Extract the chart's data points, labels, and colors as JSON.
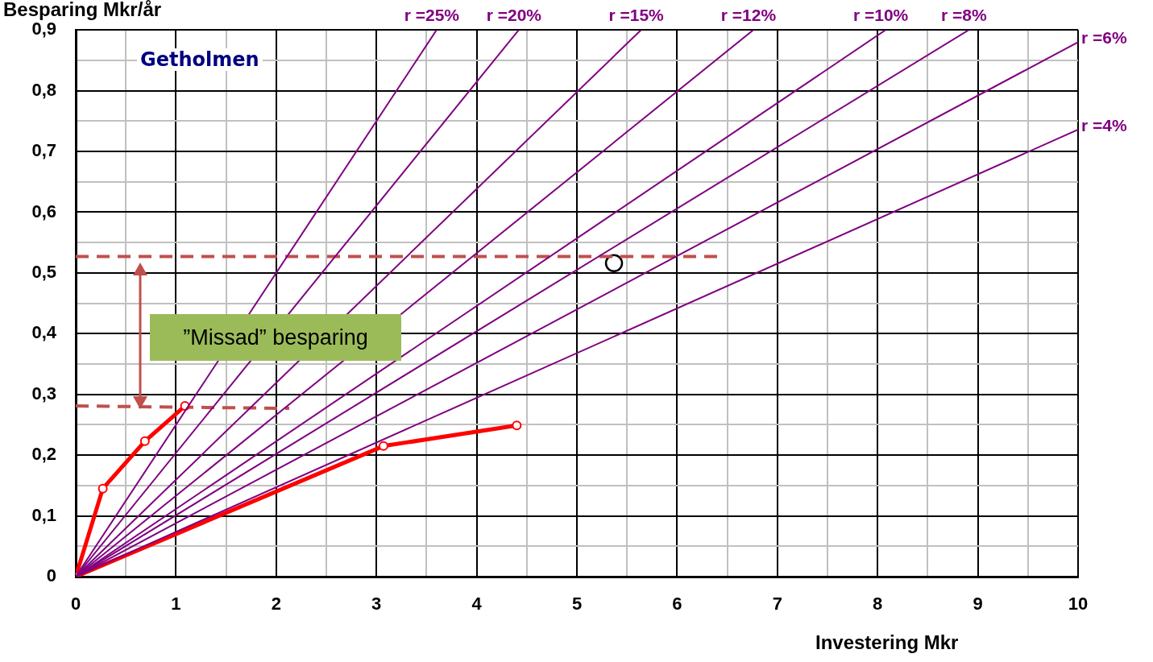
{
  "chart_data": {
    "type": "line",
    "ylabel": "Besparing Mkr/år",
    "xlabel": "Investering Mkr",
    "xlim": [
      0,
      10
    ],
    "ylim": [
      0,
      0.9
    ],
    "xticks": [
      0,
      {
        "value": 0.5,
        "label": null
      },
      1,
      {
        "value": 1.5,
        "label": null
      },
      2,
      {
        "value": 2.5,
        "label": null
      },
      3,
      {
        "value": 3.5,
        "label": null
      },
      4,
      {
        "value": 4.5,
        "label": null
      },
      5,
      {
        "value": 5.5,
        "label": null
      },
      6,
      {
        "value": 6.5,
        "label": null
      },
      7,
      {
        "value": 7.5,
        "label": null
      },
      8,
      {
        "value": 8.5,
        "label": null
      },
      9,
      {
        "value": 9.5,
        "label": null
      },
      10
    ],
    "yticks": [
      0,
      {
        "value": 0.05,
        "label": null
      },
      {
        "value": 0.1,
        "label": "0,1"
      },
      {
        "value": 0.15,
        "label": null
      },
      {
        "value": 0.2,
        "label": "0,2"
      },
      {
        "value": 0.25,
        "label": null
      },
      {
        "value": 0.3,
        "label": "0,3"
      },
      {
        "value": 0.35,
        "label": null
      },
      {
        "value": 0.4,
        "label": "0,4"
      },
      {
        "value": 0.45,
        "label": null
      },
      {
        "value": 0.5,
        "label": "0,5"
      },
      {
        "value": 0.55,
        "label": null
      },
      {
        "value": 0.6,
        "label": "0,6"
      },
      {
        "value": 0.65,
        "label": null
      },
      {
        "value": 0.7,
        "label": "0,7"
      },
      {
        "value": 0.75,
        "label": null
      },
      {
        "value": 0.8,
        "label": "0,8"
      },
      {
        "value": 0.85,
        "label": null
      },
      {
        "value": 0.9,
        "label": "0,9"
      }
    ],
    "grid": true,
    "legend": false,
    "marker": "none",
    "line_style": "solid",
    "annotations": [
      "Getholmen",
      "”Missad” besparing"
    ],
    "series": [
      {
        "name": "r =25%",
        "color": "#800080",
        "x": [
          0,
          3.6
        ],
        "values": [
          0,
          0.9
        ]
      },
      {
        "name": "r =20%",
        "color": "#800080",
        "x": [
          0,
          4.42
        ],
        "values": [
          0,
          0.9
        ]
      },
      {
        "name": "r =15%",
        "color": "#800080",
        "x": [
          0,
          5.64
        ],
        "values": [
          0,
          0.9
        ]
      },
      {
        "name": "r =12%",
        "color": "#800080",
        "x": [
          0,
          6.76
        ],
        "values": [
          0,
          0.9
        ]
      },
      {
        "name": "r =10%",
        "color": "#800080",
        "x": [
          0,
          8.08
        ],
        "values": [
          0,
          0.9
        ]
      },
      {
        "name": "r =8%",
        "color": "#800080",
        "x": [
          0,
          8.91
        ],
        "values": [
          0,
          0.9
        ]
      },
      {
        "name": "r =6%",
        "color": "#800080",
        "x": [
          0,
          10
        ],
        "values": [
          0,
          0.88
        ]
      },
      {
        "name": "r =4%",
        "color": "#800080",
        "x": [
          0,
          10
        ],
        "values": [
          0,
          0.736
        ]
      },
      {
        "color": "#ff0000",
        "marker": "circle",
        "x": [
          0,
          0.27,
          0.69,
          1.09
        ],
        "values": [
          0,
          0.145,
          0.223,
          0.281
        ]
      },
      {
        "color": "#ff0000",
        "marker": "circle",
        "x": [
          0,
          3.07,
          4.4
        ],
        "values": [
          0,
          0.215,
          0.249
        ]
      },
      {
        "color": "#c0504d",
        "line_style": "dashed",
        "x": [
          0,
          6.4
        ],
        "values": [
          0.527,
          0.527
        ]
      },
      {
        "color": "#c0504d",
        "line_style": "dashed",
        "x": [
          0,
          2.13
        ],
        "values": [
          0.281,
          0.277
        ]
      },
      {
        "type": "scatter",
        "color": "#000000",
        "marker": "circle",
        "x": [
          5.37
        ],
        "values": [
          0.516
        ]
      }
    ]
  }
}
